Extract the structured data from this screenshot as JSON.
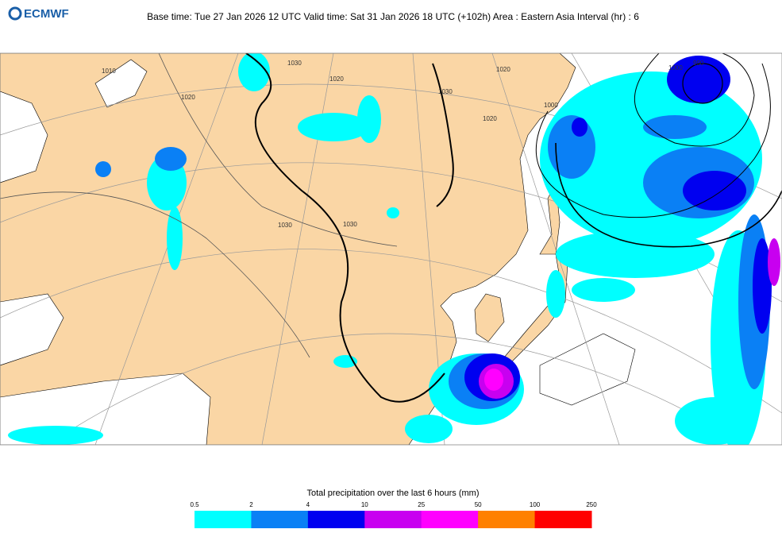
{
  "header": {
    "logo": "ECMWF",
    "title": "Base time: Tue 27 Jan 2026 12 UTC Valid time: Sat 31 Jan 2026 18 UTC (+102h) Area : Eastern Asia Interval (hr) : 6"
  },
  "map": {
    "isobar_labels": [
      "1020",
      "1030",
      "1020",
      "1030",
      "1030",
      "1010",
      "1020",
      "1000",
      "1030",
      "1020",
      "1000",
      "990"
    ]
  },
  "legend": {
    "title": "Total precipitation over the last 6 hours (mm)",
    "levels": [
      0.5,
      2,
      4,
      10,
      25,
      50,
      100,
      250
    ],
    "colors": [
      "#00ffff",
      "#0a80f5",
      "#0000f0",
      "#c800f0",
      "#ff00ff",
      "#ff8000",
      "#ff0000"
    ]
  }
}
